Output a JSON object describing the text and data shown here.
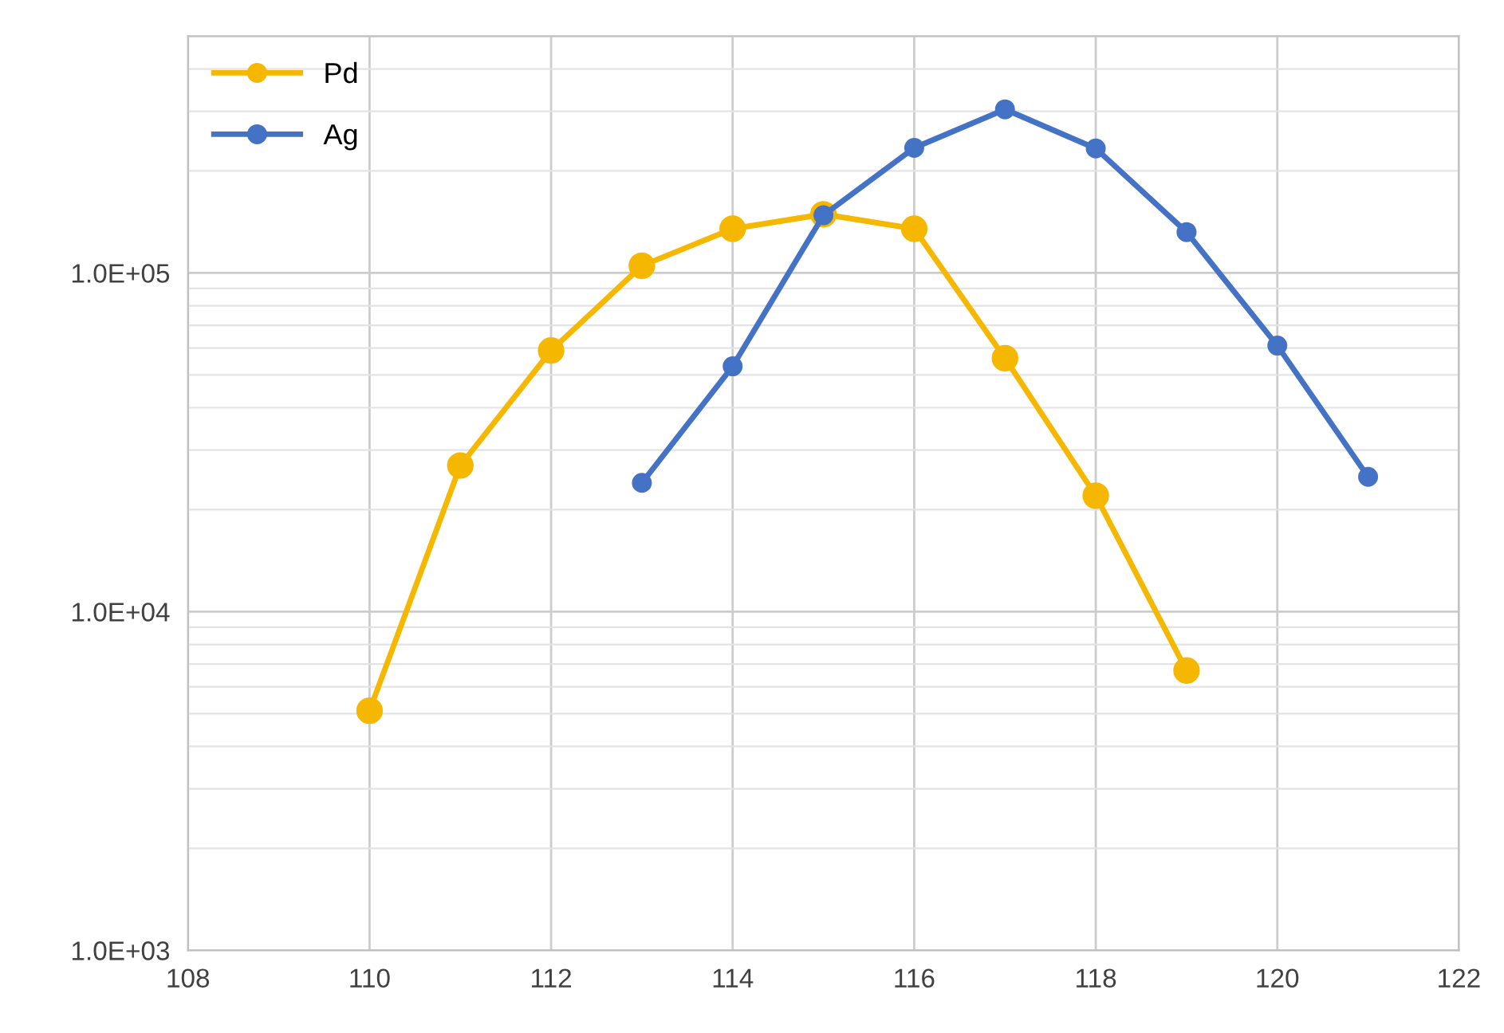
{
  "chart_data": {
    "type": "line",
    "x": [
      110,
      111,
      112,
      113,
      114,
      115,
      116,
      117,
      118,
      119
    ],
    "series": [
      {
        "name": "Pd",
        "color": "#f5b700",
        "values": [
          5100,
          27000,
          59000,
          105000,
          135000,
          149000,
          135000,
          56000,
          22000,
          6700
        ]
      },
      {
        "name": "Ag",
        "color": "#4472c4",
        "x": [
          113,
          114,
          115,
          116,
          117,
          118,
          119,
          120,
          121
        ],
        "values": [
          24000,
          53000,
          148000,
          234000,
          304000,
          233000,
          132000,
          61000,
          25000
        ]
      }
    ],
    "log": "y",
    "xlim": [
      108,
      122
    ],
    "xticks": [
      108,
      110,
      112,
      114,
      116,
      118,
      120,
      122
    ],
    "ylim": [
      1000,
      500000
    ],
    "yticks": [
      {
        "value": 1000,
        "label": "1.0E+03"
      },
      {
        "value": 10000,
        "label": "1.0E+04"
      },
      {
        "value": 100000,
        "label": "1.0E+05"
      }
    ],
    "grid": true,
    "legend": "top left",
    "marker": "circle",
    "line_style": "solid"
  }
}
